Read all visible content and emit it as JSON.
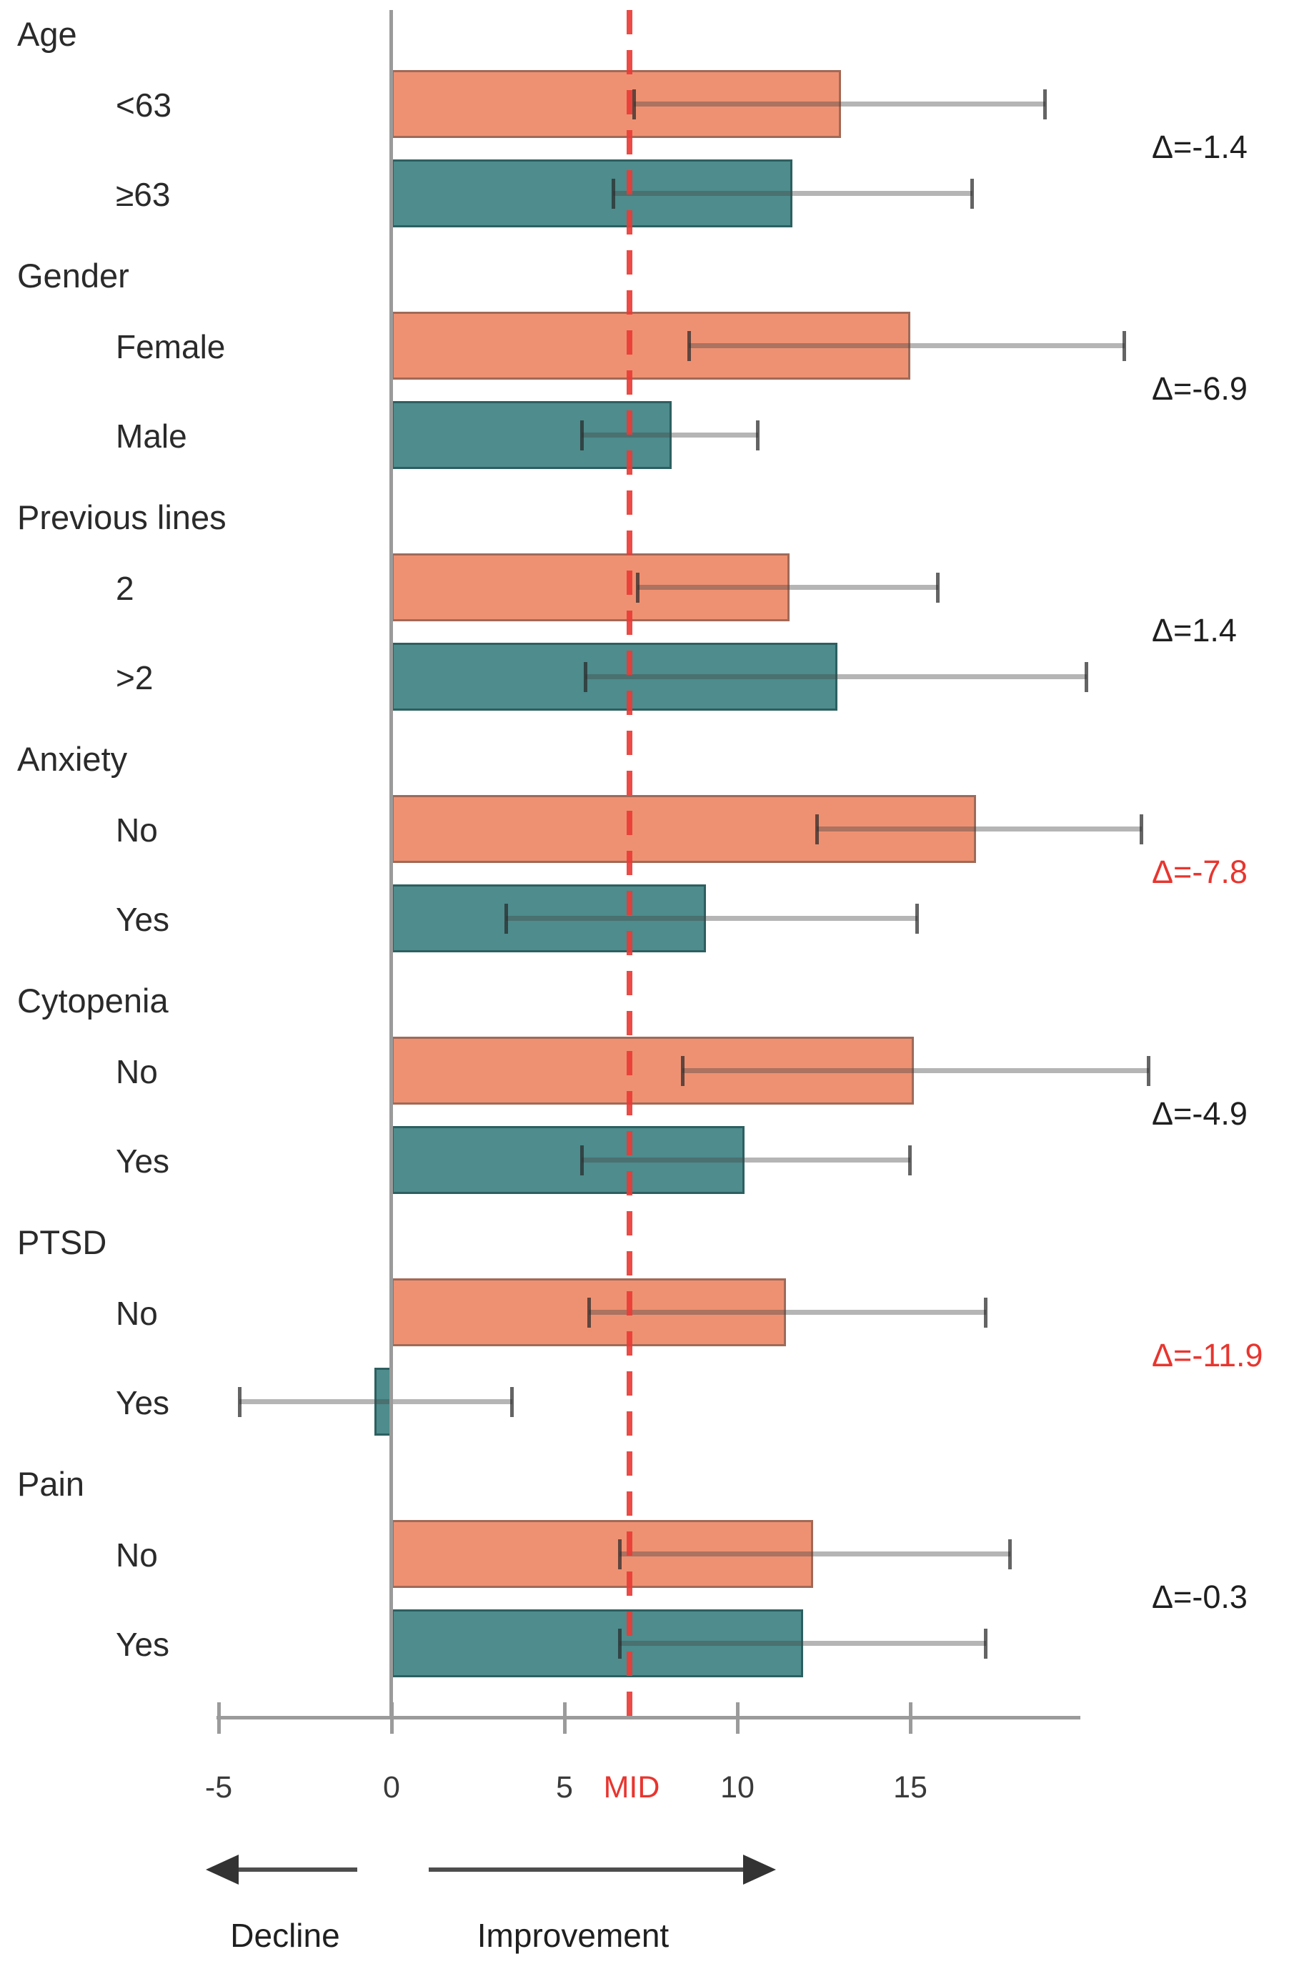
{
  "chart_data": {
    "type": "bar",
    "orientation": "horizontal",
    "axis": {
      "ticks": [
        -5,
        0,
        5,
        10,
        15
      ],
      "range": [
        -5,
        20
      ],
      "mid_value": 7,
      "mid_label": "MID",
      "grid": false
    },
    "colors": {
      "series_first": "#EE9172",
      "series_second": "#4E8C8D",
      "mid_line_red": "#EA3B36",
      "axis_gray": "#9B9B9B",
      "delta_highlight_red": "#E8352F"
    },
    "groups": [
      {
        "label": "Age",
        "delta": "Δ=-1.4",
        "delta_color": "black",
        "bars": [
          {
            "label": "<63",
            "value": 13.0,
            "ci": [
              7.0,
              18.9
            ]
          },
          {
            "label": "≥63",
            "value": 11.6,
            "ci": [
              6.4,
              16.8
            ]
          }
        ]
      },
      {
        "label": "Gender",
        "delta": "Δ=-6.9",
        "delta_color": "black",
        "bars": [
          {
            "label": "Female",
            "value": 15.0,
            "ci": [
              8.6,
              21.2
            ]
          },
          {
            "label": "Male",
            "value": 8.1,
            "ci": [
              5.5,
              10.6
            ]
          }
        ]
      },
      {
        "label": "Previous lines",
        "delta": "Δ=1.4",
        "delta_color": "black",
        "bars": [
          {
            "label": "2",
            "value": 11.5,
            "ci": [
              7.1,
              15.8
            ]
          },
          {
            "label": ">2",
            "value": 12.9,
            "ci": [
              5.6,
              20.1
            ]
          }
        ]
      },
      {
        "label": "Anxiety",
        "delta": "Δ=-7.8",
        "delta_color": "red",
        "bars": [
          {
            "label": "No",
            "value": 16.9,
            "ci": [
              12.3,
              21.7
            ]
          },
          {
            "label": "Yes",
            "value": 9.1,
            "ci": [
              3.3,
              15.2
            ]
          }
        ]
      },
      {
        "label": "Cytopenia",
        "delta": "Δ=-4.9",
        "delta_color": "black",
        "bars": [
          {
            "label": "No",
            "value": 15.1,
            "ci": [
              8.4,
              21.9
            ]
          },
          {
            "label": "Yes",
            "value": 10.2,
            "ci": [
              5.5,
              15.0
            ]
          }
        ]
      },
      {
        "label": "PTSD",
        "delta": "Δ=-11.9",
        "delta_color": "red",
        "bars": [
          {
            "label": "No",
            "value": 11.4,
            "ci": [
              5.7,
              17.2
            ]
          },
          {
            "label": "Yes",
            "value": -0.5,
            "ci": [
              -4.4,
              3.5
            ]
          }
        ]
      },
      {
        "label": "Pain",
        "delta": "Δ=-0.3",
        "delta_color": "black",
        "bars": [
          {
            "label": "No",
            "value": 12.2,
            "ci": [
              6.6,
              17.9
            ]
          },
          {
            "label": "Yes",
            "value": 11.9,
            "ci": [
              6.6,
              17.2
            ]
          }
        ]
      }
    ],
    "footer": {
      "decline": "Decline",
      "improvement": "Improvement"
    }
  }
}
